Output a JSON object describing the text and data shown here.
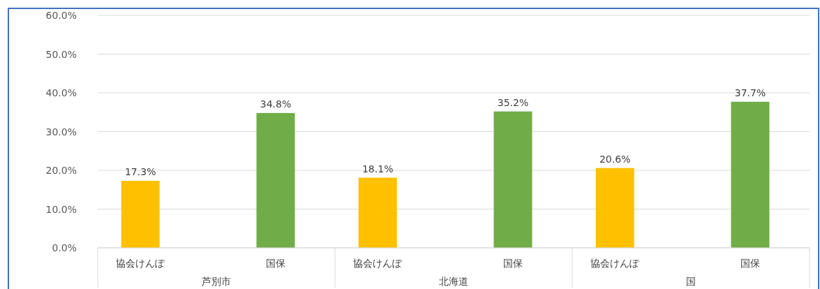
{
  "chart_data": {
    "type": "bar",
    "categories": [
      "芦別市",
      "北海道",
      "国"
    ],
    "series": [
      {
        "name": "協会けんぽ",
        "color": "#ffc000",
        "values": [
          17.3,
          18.1,
          20.6
        ]
      },
      {
        "name": "国保",
        "color": "#70ad47",
        "values": [
          34.8,
          35.2,
          37.7
        ]
      }
    ],
    "ylim": [
      0,
      60
    ],
    "yticks": [
      {
        "value": 0,
        "label": "0.0%"
      },
      {
        "value": 10,
        "label": "10.0%"
      },
      {
        "value": 20,
        "label": "20.0%"
      },
      {
        "value": 30,
        "label": "30.0%"
      },
      {
        "value": 40,
        "label": "40.0%"
      },
      {
        "value": 50,
        "label": "50.0%"
      },
      {
        "value": 60,
        "label": "60.0%"
      }
    ],
    "value_labels": [
      "17.3%",
      "18.1%",
      "20.6%",
      "34.8%",
      "35.2%",
      "37.7%"
    ],
    "grid": "y"
  }
}
